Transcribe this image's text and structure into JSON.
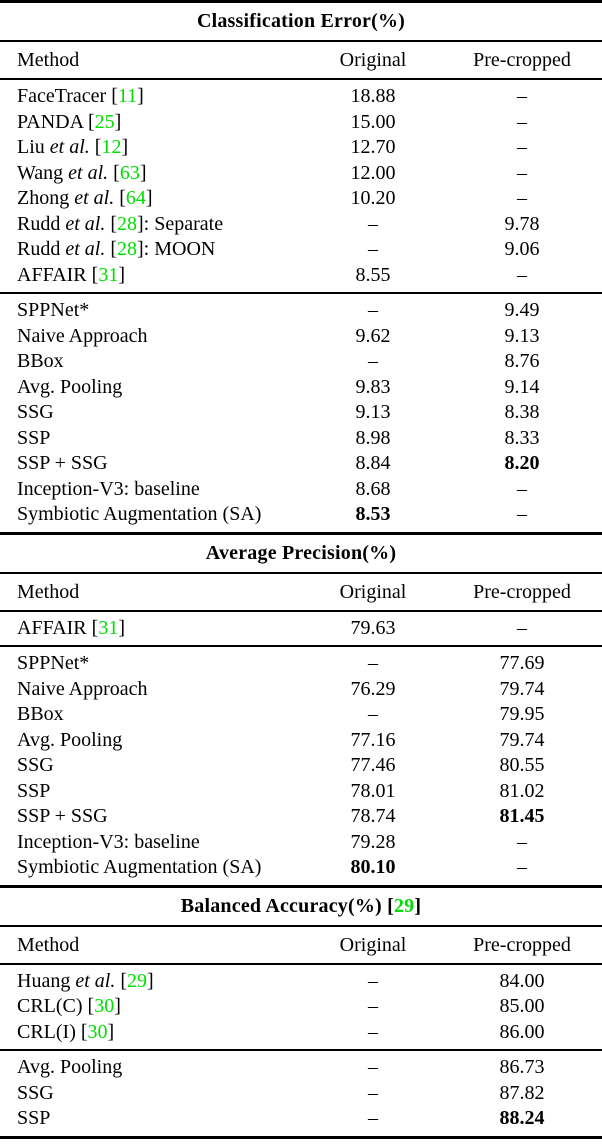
{
  "colors": {
    "citation_green": "#00E000",
    "text": "#000000",
    "background": "#FFFFFF",
    "rule": "#000000"
  },
  "columns": {
    "method": "Method",
    "original": "Original",
    "precropped": "Pre-cropped"
  },
  "sections": [
    {
      "title": [
        {
          "t": "Classification Error(%)",
          "s": "plain"
        }
      ],
      "groups": [
        {
          "rows": [
            {
              "method": [
                {
                  "t": "FaceTracer [",
                  "s": "plain"
                },
                {
                  "t": "11",
                  "s": "cite"
                },
                {
                  "t": "]",
                  "s": "plain"
                }
              ],
              "original": "18.88",
              "precropped": "–"
            },
            {
              "method": [
                {
                  "t": "PANDA [",
                  "s": "plain"
                },
                {
                  "t": "25",
                  "s": "cite"
                },
                {
                  "t": "]",
                  "s": "plain"
                }
              ],
              "original": "15.00",
              "precropped": "–"
            },
            {
              "method": [
                {
                  "t": "Liu ",
                  "s": "plain"
                },
                {
                  "t": "et al.",
                  "s": "italic"
                },
                {
                  "t": " [",
                  "s": "plain"
                },
                {
                  "t": "12",
                  "s": "cite"
                },
                {
                  "t": "]",
                  "s": "plain"
                }
              ],
              "original": "12.70",
              "precropped": "–"
            },
            {
              "method": [
                {
                  "t": "Wang ",
                  "s": "plain"
                },
                {
                  "t": "et al.",
                  "s": "italic"
                },
                {
                  "t": " [",
                  "s": "plain"
                },
                {
                  "t": "63",
                  "s": "cite"
                },
                {
                  "t": "]",
                  "s": "plain"
                }
              ],
              "original": "12.00",
              "precropped": "–"
            },
            {
              "method": [
                {
                  "t": "Zhong ",
                  "s": "plain"
                },
                {
                  "t": "et al.",
                  "s": "italic"
                },
                {
                  "t": " [",
                  "s": "plain"
                },
                {
                  "t": "64",
                  "s": "cite"
                },
                {
                  "t": "]",
                  "s": "plain"
                }
              ],
              "original": "10.20",
              "precropped": "–"
            },
            {
              "method": [
                {
                  "t": "Rudd ",
                  "s": "plain"
                },
                {
                  "t": "et al.",
                  "s": "italic"
                },
                {
                  "t": " [",
                  "s": "plain"
                },
                {
                  "t": "28",
                  "s": "cite"
                },
                {
                  "t": "]: Separate",
                  "s": "plain"
                }
              ],
              "original": "–",
              "precropped": "9.78"
            },
            {
              "method": [
                {
                  "t": "Rudd ",
                  "s": "plain"
                },
                {
                  "t": "et al.",
                  "s": "italic"
                },
                {
                  "t": " [",
                  "s": "plain"
                },
                {
                  "t": "28",
                  "s": "cite"
                },
                {
                  "t": "]: MOON",
                  "s": "plain"
                }
              ],
              "original": "–",
              "precropped": "9.06"
            },
            {
              "method": [
                {
                  "t": "AFFAIR [",
                  "s": "plain"
                },
                {
                  "t": "31",
                  "s": "cite"
                },
                {
                  "t": "]",
                  "s": "plain"
                }
              ],
              "original": "8.55",
              "precropped": "–"
            }
          ]
        },
        {
          "rows": [
            {
              "method": [
                {
                  "t": "SPPNet*",
                  "s": "plain"
                }
              ],
              "original": "–",
              "precropped": "9.49"
            },
            {
              "method": [
                {
                  "t": "Naive Approach",
                  "s": "plain"
                }
              ],
              "original": "9.62",
              "precropped": "9.13"
            },
            {
              "method": [
                {
                  "t": "BBox",
                  "s": "plain"
                }
              ],
              "original": "–",
              "precropped": "8.76"
            },
            {
              "method": [
                {
                  "t": "Avg. Pooling",
                  "s": "plain"
                }
              ],
              "original": "9.83",
              "precropped": "9.14"
            },
            {
              "method": [
                {
                  "t": "SSG",
                  "s": "plain"
                }
              ],
              "original": "9.13",
              "precropped": "8.38"
            },
            {
              "method": [
                {
                  "t": "SSP",
                  "s": "plain"
                }
              ],
              "original": "8.98",
              "precropped": "8.33"
            },
            {
              "method": [
                {
                  "t": "SSP + SSG",
                  "s": "plain"
                }
              ],
              "original": "8.84",
              "precropped": "8.20",
              "precropped_bold": true
            },
            {
              "method": [
                {
                  "t": "Inception-V3: baseline",
                  "s": "plain"
                }
              ],
              "original": "8.68",
              "precropped": "–"
            },
            {
              "method": [
                {
                  "t": "Symbiotic Augmentation (SA)",
                  "s": "plain"
                }
              ],
              "original": "8.53",
              "original_bold": true,
              "precropped": "–"
            }
          ]
        }
      ]
    },
    {
      "title": [
        {
          "t": "Average Precision(%)",
          "s": "plain"
        }
      ],
      "groups": [
        {
          "rows": [
            {
              "method": [
                {
                  "t": "AFFAIR [",
                  "s": "plain"
                },
                {
                  "t": "31",
                  "s": "cite"
                },
                {
                  "t": "]",
                  "s": "plain"
                }
              ],
              "original": "79.63",
              "precropped": "–"
            }
          ]
        },
        {
          "rows": [
            {
              "method": [
                {
                  "t": "SPPNet*",
                  "s": "plain"
                }
              ],
              "original": "–",
              "precropped": "77.69"
            },
            {
              "method": [
                {
                  "t": "Naive Approach",
                  "s": "plain"
                }
              ],
              "original": "76.29",
              "precropped": "79.74"
            },
            {
              "method": [
                {
                  "t": "BBox",
                  "s": "plain"
                }
              ],
              "original": "–",
              "precropped": "79.95"
            },
            {
              "method": [
                {
                  "t": "Avg. Pooling",
                  "s": "plain"
                }
              ],
              "original": "77.16",
              "precropped": "79.74"
            },
            {
              "method": [
                {
                  "t": "SSG",
                  "s": "plain"
                }
              ],
              "original": "77.46",
              "precropped": "80.55"
            },
            {
              "method": [
                {
                  "t": "SSP",
                  "s": "plain"
                }
              ],
              "original": "78.01",
              "precropped": "81.02"
            },
            {
              "method": [
                {
                  "t": "SSP + SSG",
                  "s": "plain"
                }
              ],
              "original": "78.74",
              "precropped": "81.45",
              "precropped_bold": true
            },
            {
              "method": [
                {
                  "t": "Inception-V3: baseline",
                  "s": "plain"
                }
              ],
              "original": "79.28",
              "precropped": "–"
            },
            {
              "method": [
                {
                  "t": "Symbiotic Augmentation (SA)",
                  "s": "plain"
                }
              ],
              "original": "80.10",
              "original_bold": true,
              "precropped": "–"
            }
          ]
        }
      ]
    },
    {
      "title": [
        {
          "t": "Balanced Accuracy(%) [",
          "s": "plain"
        },
        {
          "t": "29",
          "s": "cite"
        },
        {
          "t": "]",
          "s": "plain"
        }
      ],
      "groups": [
        {
          "rows": [
            {
              "method": [
                {
                  "t": "Huang ",
                  "s": "plain"
                },
                {
                  "t": "et al.",
                  "s": "italic"
                },
                {
                  "t": " [",
                  "s": "plain"
                },
                {
                  "t": "29",
                  "s": "cite"
                },
                {
                  "t": "]",
                  "s": "plain"
                }
              ],
              "original": "–",
              "precropped": "84.00"
            },
            {
              "method": [
                {
                  "t": "CRL(C) [",
                  "s": "plain"
                },
                {
                  "t": "30",
                  "s": "cite"
                },
                {
                  "t": "]",
                  "s": "plain"
                }
              ],
              "original": "–",
              "precropped": "85.00"
            },
            {
              "method": [
                {
                  "t": "CRL(I) [",
                  "s": "plain"
                },
                {
                  "t": "30",
                  "s": "cite"
                },
                {
                  "t": "]",
                  "s": "plain"
                }
              ],
              "original": "–",
              "precropped": "86.00"
            }
          ]
        },
        {
          "rows": [
            {
              "method": [
                {
                  "t": "Avg. Pooling",
                  "s": "plain"
                }
              ],
              "original": "–",
              "precropped": "86.73"
            },
            {
              "method": [
                {
                  "t": "SSG",
                  "s": "plain"
                }
              ],
              "original": "–",
              "precropped": "87.82"
            },
            {
              "method": [
                {
                  "t": "SSP",
                  "s": "plain"
                }
              ],
              "original": "–",
              "precropped": "88.24",
              "precropped_bold": true
            }
          ]
        }
      ]
    }
  ]
}
